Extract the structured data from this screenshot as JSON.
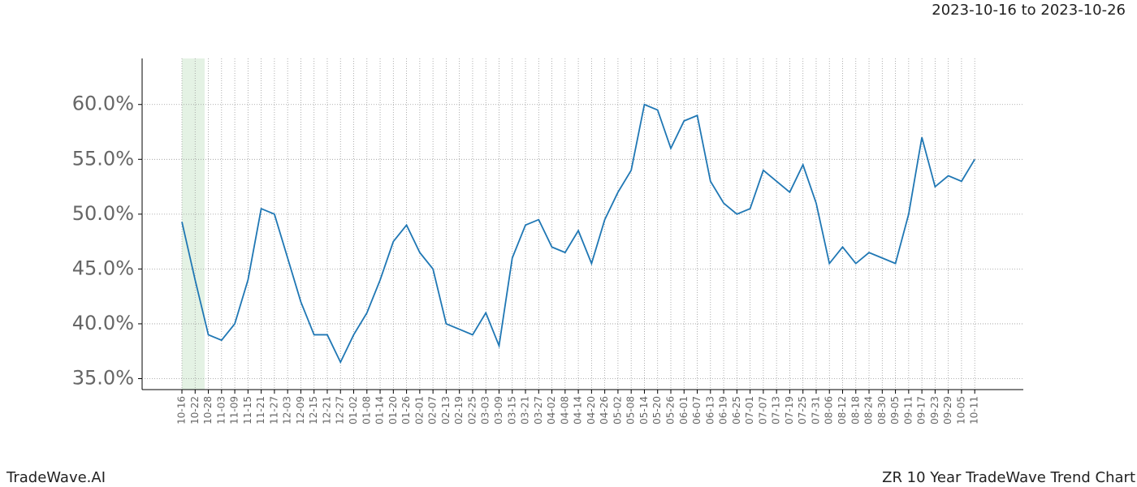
{
  "chart_data": {
    "type": "line",
    "title": "ZR 10 Year TradeWave Trend Chart",
    "subtitle": "2023-10-16 to 2023-10-26",
    "footer": "TradeWave.AI",
    "categories": [
      "10-16",
      "10-22",
      "10-28",
      "11-03",
      "11-09",
      "11-15",
      "11-21",
      "11-27",
      "12-03",
      "12-09",
      "12-15",
      "12-21",
      "12-27",
      "01-02",
      "01-08",
      "01-14",
      "01-20",
      "01-26",
      "02-01",
      "02-07",
      "02-13",
      "02-19",
      "02-25",
      "03-03",
      "03-09",
      "03-15",
      "03-21",
      "03-27",
      "04-02",
      "04-08",
      "04-14",
      "04-20",
      "04-26",
      "05-02",
      "05-08",
      "05-14",
      "05-20",
      "05-26",
      "06-01",
      "06-07",
      "06-13",
      "06-19",
      "06-25",
      "07-01",
      "07-07",
      "07-13",
      "07-19",
      "07-25",
      "07-31",
      "08-06",
      "08-12",
      "08-18",
      "08-24",
      "08-30",
      "09-05",
      "09-11",
      "09-17",
      "09-23",
      "09-29",
      "10-05",
      "10-11"
    ],
    "series": [
      {
        "color": "#1f77b4",
        "values": [
          49.3,
          44,
          39,
          38.5,
          40,
          44,
          50.5,
          50,
          46,
          42,
          39,
          39,
          36.5,
          39,
          41,
          44,
          47.5,
          49,
          46.5,
          45,
          40,
          39.5,
          39,
          41,
          38,
          46,
          49,
          49.5,
          47,
          46.5,
          48.5,
          45.5,
          49.5,
          52,
          54,
          60,
          59.5,
          56,
          58.5,
          59,
          53,
          51,
          50,
          50.5,
          54,
          53,
          52,
          54.5,
          51,
          45.5,
          47,
          45.5,
          46.5,
          46,
          45.5,
          50,
          57,
          52.5,
          53.5,
          53,
          55
        ]
      }
    ],
    "ylim": [
      34.0,
      64.2
    ],
    "yticks": [
      {
        "value": 35,
        "label": "35.0%"
      },
      {
        "value": 40,
        "label": "40.0%"
      },
      {
        "value": 45,
        "label": "45.0%"
      },
      {
        "value": 50,
        "label": "50.0%"
      },
      {
        "value": 55,
        "label": "55.0%"
      },
      {
        "value": 60,
        "label": "60.0%"
      }
    ],
    "grid": true
  }
}
